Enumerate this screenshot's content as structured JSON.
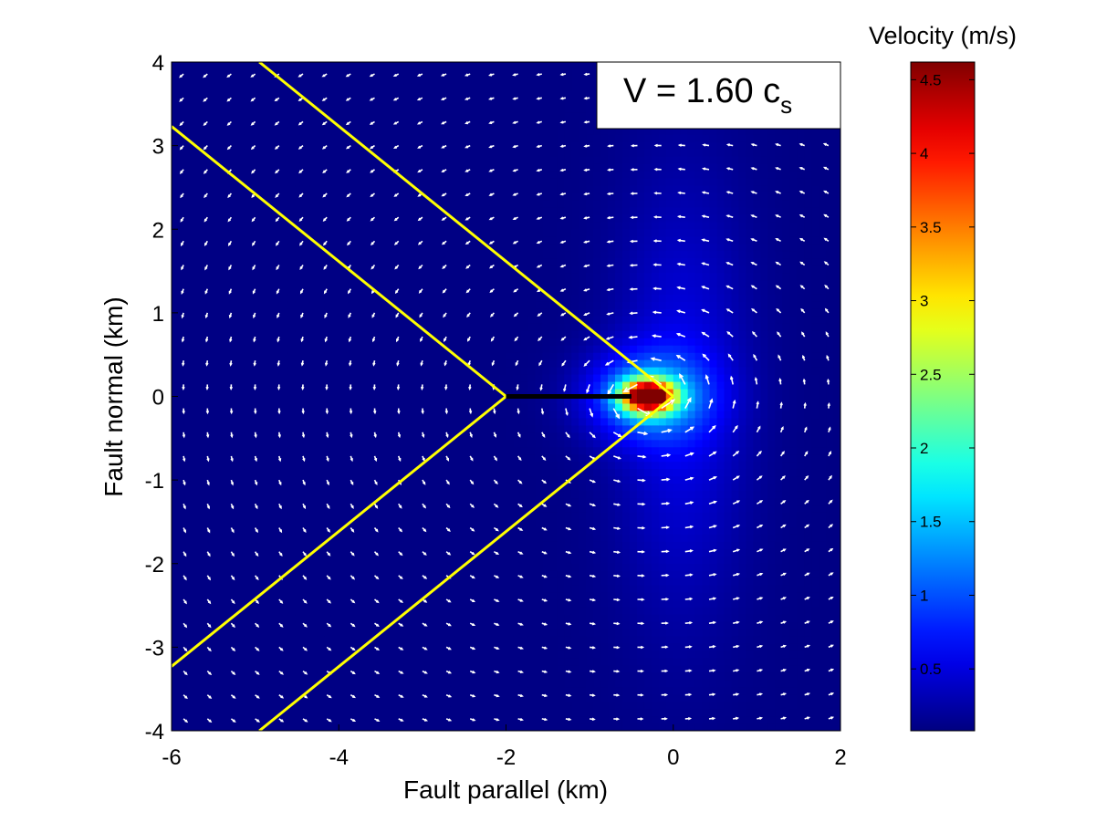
{
  "chart_data": {
    "type": "heatmap",
    "subtype": "filled-contour with velocity quiver overlay",
    "xlabel": "Fault parallel (km)",
    "ylabel": "Fault normal (km)",
    "xlim": [
      -6,
      2
    ],
    "ylim": [
      -4,
      4
    ],
    "xticks": [
      -6,
      -4,
      -2,
      0,
      2
    ],
    "yticks": [
      -4,
      -3,
      -2,
      -1,
      0,
      1,
      2,
      3,
      4
    ],
    "colormap": "jet",
    "colorbar": {
      "title": "Velocity (m/s)",
      "range": [
        0.08,
        4.62
      ],
      "ticks": [
        0.5,
        1,
        1.5,
        2,
        2.5,
        3,
        3.5,
        4,
        4.5
      ],
      "placement": "right"
    },
    "annotation": {
      "text": "V = 1.60 c",
      "subscript": "s",
      "placement": "top-right"
    },
    "rupture": {
      "x_start": -2,
      "x_end": -0.5,
      "y": 0,
      "color": "#000000"
    },
    "mach_fronts": {
      "color": "#ffff00",
      "lines": [
        {
          "name": "outer-upper",
          "points": [
            [
              0,
              0
            ],
            [
              -4.95,
              4
            ]
          ]
        },
        {
          "name": "outer-lower",
          "points": [
            [
              0,
              0
            ],
            [
              -4.95,
              -4
            ]
          ]
        },
        {
          "name": "inner-upper",
          "points": [
            [
              -2,
              0
            ],
            [
              -6,
              3.23
            ]
          ]
        },
        {
          "name": "inner-lower",
          "points": [
            [
              -2,
              0
            ],
            [
              -6,
              -3.23
            ]
          ]
        }
      ]
    },
    "field": {
      "background_velocity": 0.1,
      "peak_velocity": 4.6,
      "peak_location": [
        -0.3,
        0
      ],
      "vector_color": "#ffffff"
    }
  }
}
